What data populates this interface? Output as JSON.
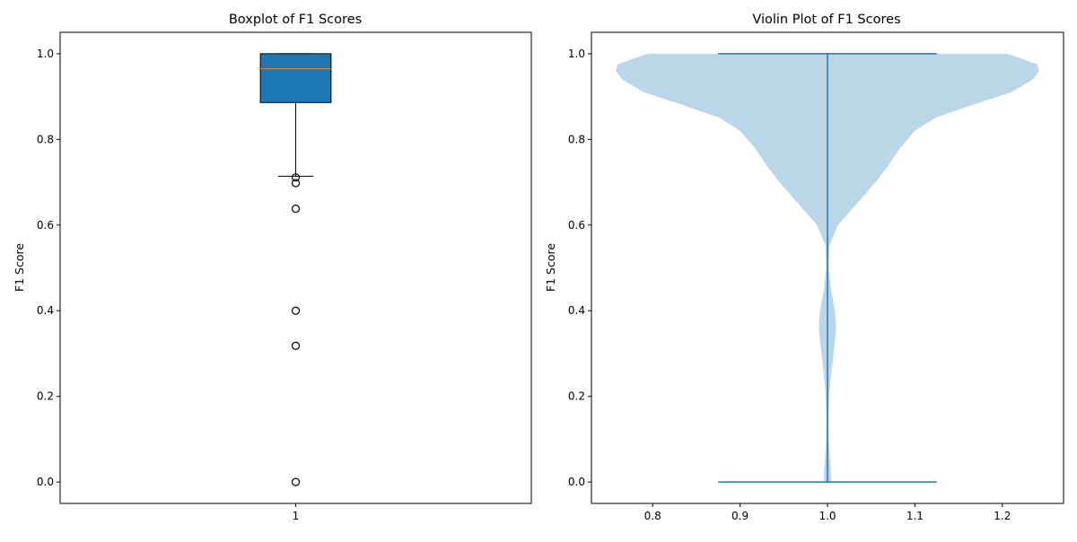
{
  "chart_data": [
    {
      "type": "box",
      "title": "Boxplot of F1 Scores",
      "xlabel": "",
      "ylabel": "F1 Score",
      "categories": [
        "1"
      ],
      "xlim": [
        0.5,
        1.5
      ],
      "ylim": [
        -0.05,
        1.05
      ],
      "yticks": [
        "0.0",
        "0.2",
        "0.4",
        "0.6",
        "0.8",
        "1.0"
      ],
      "box": {
        "position": 1,
        "q1": 0.886,
        "median": 0.965,
        "q3": 1.0,
        "whisker_low": 0.714,
        "whisker_high": 1.0,
        "outliers": [
          0.711,
          0.698,
          0.638,
          0.4,
          0.318,
          0.0
        ]
      },
      "colors": {
        "box_fill": "#1f77b4",
        "median": "#ff7f0e",
        "edge": "#000000"
      }
    },
    {
      "type": "violin",
      "title": "Violin Plot of F1 Scores",
      "xlabel": "",
      "ylabel": "F1 Score",
      "xlim": [
        0.73,
        1.27
      ],
      "ylim": [
        -0.05,
        1.05
      ],
      "xticks": [
        "0.8",
        "0.9",
        "1.0",
        "1.1",
        "1.2"
      ],
      "yticks": [
        "0.0",
        "0.2",
        "0.4",
        "0.6",
        "0.8",
        "1.0"
      ],
      "position": 1.0,
      "min": 0.0,
      "max": 1.0,
      "cap_halfwidth": 0.125,
      "density_profile": {
        "y": [
          0.0,
          0.02,
          0.05,
          0.1,
          0.15,
          0.2,
          0.25,
          0.3,
          0.35,
          0.37,
          0.4,
          0.45,
          0.5,
          0.55,
          0.6,
          0.63,
          0.66,
          0.7,
          0.74,
          0.78,
          0.82,
          0.85,
          0.88,
          0.91,
          0.94,
          0.96,
          0.975,
          0.99,
          1.0
        ],
        "halfwidth": [
          0.004,
          0.004,
          0.003,
          0.0015,
          0.001,
          0.002,
          0.004,
          0.007,
          0.0095,
          0.0098,
          0.0085,
          0.004,
          0.0015,
          0.002,
          0.012,
          0.025,
          0.038,
          0.055,
          0.07,
          0.083,
          0.1,
          0.123,
          0.165,
          0.21,
          0.235,
          0.242,
          0.24,
          0.22,
          0.205
        ]
      },
      "colors": {
        "body": "#1f77b4",
        "body_alpha": 0.3,
        "lines": "#1f77b4"
      }
    }
  ]
}
